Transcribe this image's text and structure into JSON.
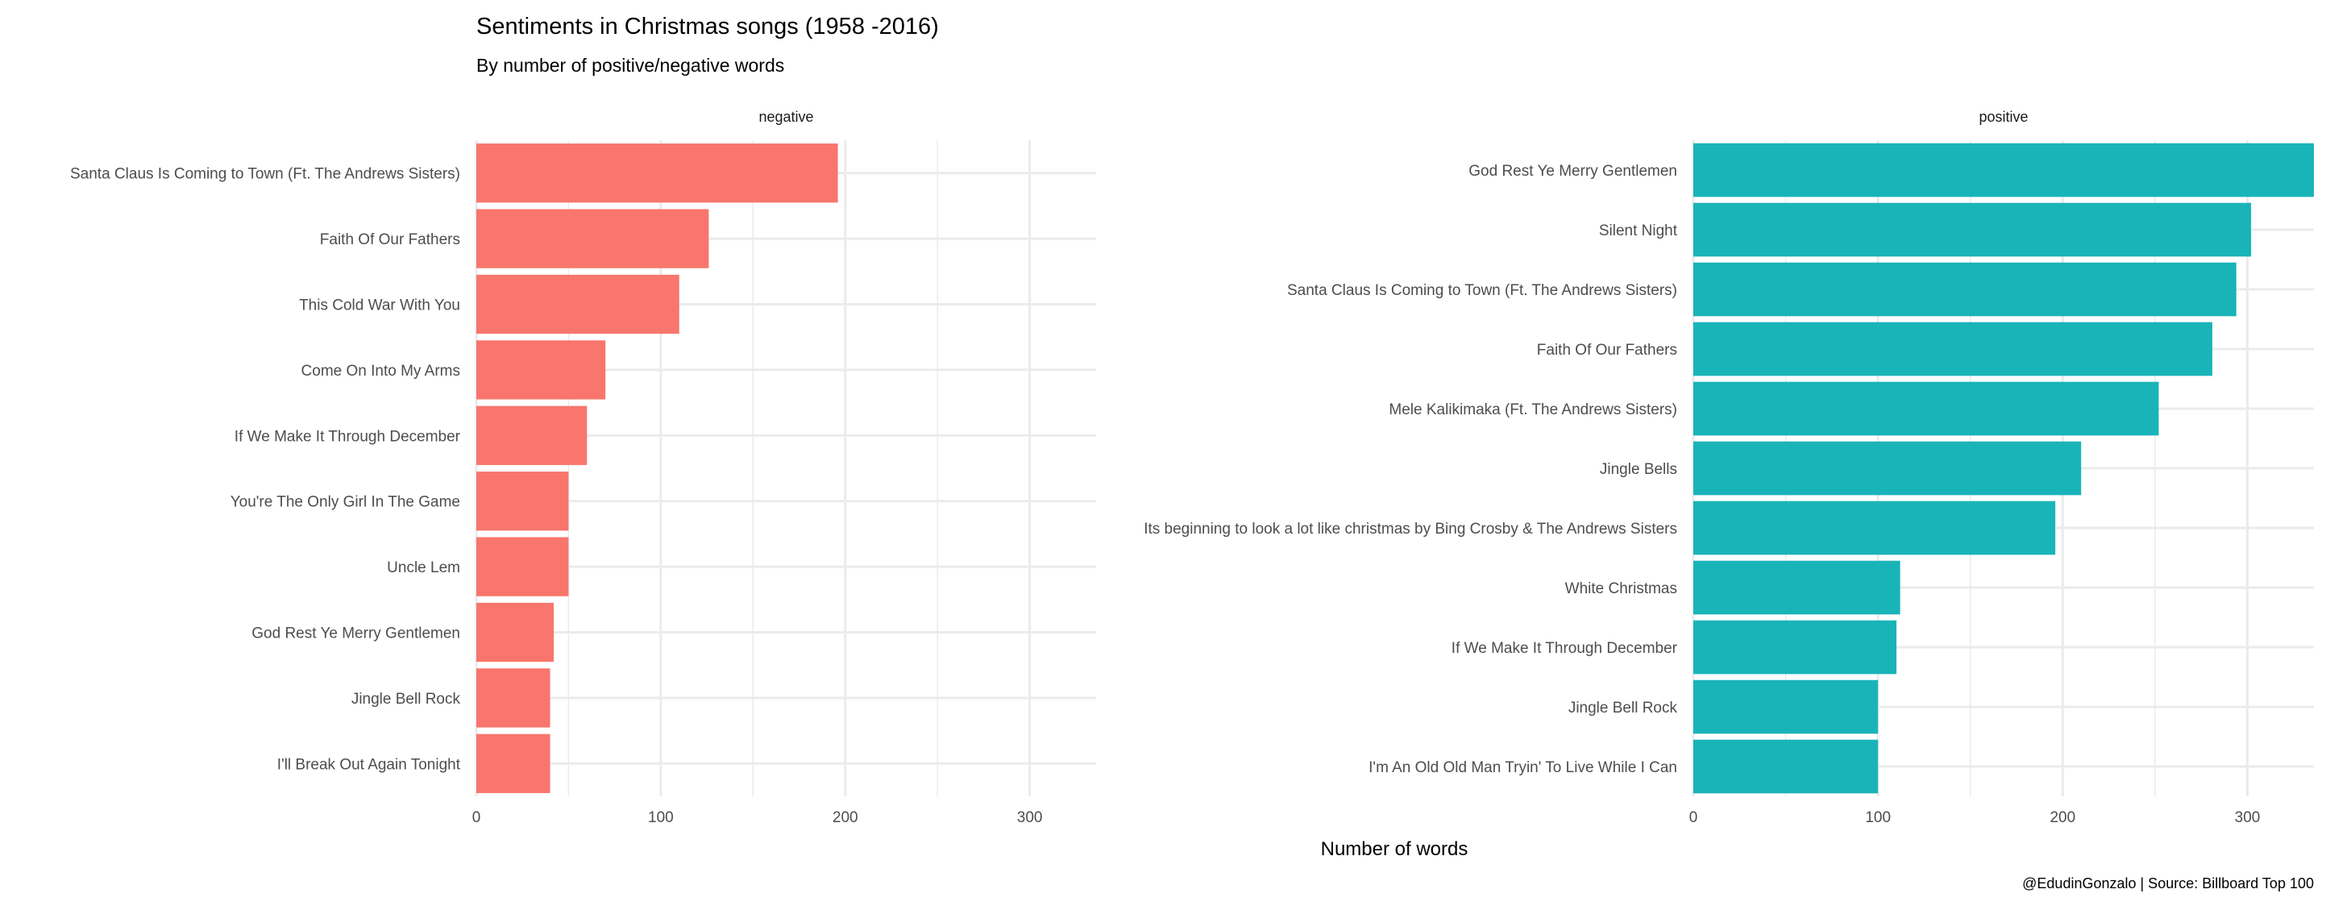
{
  "title": "Sentiments in Christmas songs (1958 -2016)",
  "subtitle": "By number of positive/negative words",
  "xlabel": "Number of words",
  "caption": "@EdudinGonzalo | Source: Billboard Top 100",
  "chart_data": {
    "type": "bar",
    "orientation": "horizontal",
    "grid": true,
    "legend": "none",
    "xlim": [
      0,
      336
    ],
    "x_ticks": [
      0,
      100,
      200,
      300
    ],
    "panels": [
      {
        "name": "negative",
        "color": "#F8766D",
        "categories": [
          "Santa Claus Is Coming to Town (Ft. The Andrews Sisters)",
          "Faith Of Our Fathers",
          "This Cold War With You",
          "Come On Into My Arms",
          "If We Make It Through December",
          "You're The Only Girl In The Game",
          "Uncle Lem",
          "God Rest Ye Merry Gentlemen",
          "Jingle Bell Rock",
          "I'll Break Out Again Tonight"
        ],
        "values": [
          196,
          126,
          110,
          70,
          60,
          50,
          50,
          42,
          40,
          40
        ]
      },
      {
        "name": "positive",
        "color": "#19B4B8",
        "categories": [
          "God Rest Ye Merry Gentlemen",
          "Silent Night",
          "Santa Claus Is Coming to Town (Ft. The Andrews Sisters)",
          "Faith Of Our Fathers",
          "Mele Kalikimaka (Ft. The Andrews Sisters)",
          "Jingle Bells",
          "Its beginning to look a lot like christmas by Bing Crosby & The Andrews Sisters",
          "White Christmas",
          "If We Make It Through December",
          "Jingle Bell Rock",
          "I'm An Old Old Man Tryin' To Live While I Can"
        ],
        "values": [
          336,
          302,
          294,
          281,
          252,
          210,
          196,
          112,
          110,
          100,
          100
        ]
      }
    ]
  }
}
